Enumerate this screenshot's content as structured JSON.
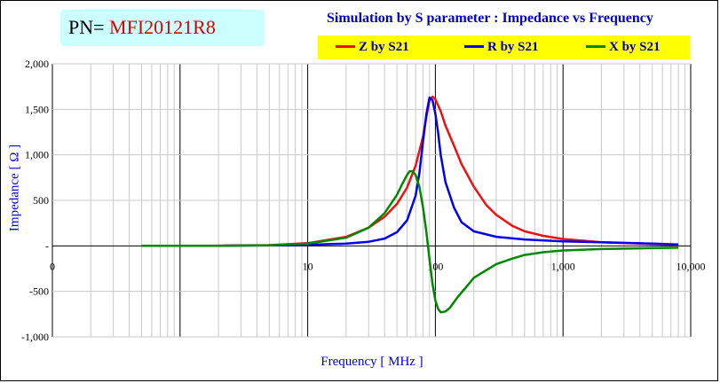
{
  "header": {
    "pn_label": "PN=",
    "pn_value": "MFI20121R8",
    "title": "Simulation by S parameter : Impedance vs Frequency"
  },
  "chart_data": {
    "type": "line",
    "title": "Simulation by S parameter : Impedance vs Frequency",
    "xlabel": "Frequency [ MHz ]",
    "ylabel": "Impedance [ Ω ]",
    "x_scale": "log",
    "xlim": [
      0.1,
      10000
    ],
    "ylim": [
      -1000,
      2000
    ],
    "x_ticks": [
      0.1,
      1,
      10,
      100,
      1000,
      10000
    ],
    "x_tick_labels": [
      "0",
      "",
      "10",
      "100",
      "1,000",
      "10,000"
    ],
    "y_ticks": [
      -1000,
      -500,
      0,
      500,
      1000,
      1500,
      2000
    ],
    "y_tick_labels": [
      "-1,000",
      "-500",
      "-",
      "500",
      "1,000",
      "1,500",
      "2,000"
    ],
    "grid": true,
    "legend_position": "top-right",
    "series": [
      {
        "name": "Z by S21",
        "color": "#ee1111",
        "points": [
          [
            0.5,
            0
          ],
          [
            1,
            1
          ],
          [
            2,
            2
          ],
          [
            5,
            8
          ],
          [
            10,
            30
          ],
          [
            20,
            100
          ],
          [
            30,
            200
          ],
          [
            40,
            320
          ],
          [
            50,
            460
          ],
          [
            60,
            640
          ],
          [
            70,
            880
          ],
          [
            80,
            1200
          ],
          [
            85,
            1420
          ],
          [
            90,
            1600
          ],
          [
            95,
            1640
          ],
          [
            100,
            1610
          ],
          [
            110,
            1480
          ],
          [
            120,
            1320
          ],
          [
            140,
            1100
          ],
          [
            160,
            900
          ],
          [
            200,
            650
          ],
          [
            250,
            450
          ],
          [
            300,
            340
          ],
          [
            400,
            220
          ],
          [
            500,
            160
          ],
          [
            700,
            110
          ],
          [
            1000,
            75
          ],
          [
            2000,
            40
          ],
          [
            5000,
            20
          ],
          [
            8000,
            12
          ]
        ]
      },
      {
        "name": "R by S21",
        "color": "#0000ee",
        "points": [
          [
            0.5,
            0
          ],
          [
            1,
            0
          ],
          [
            2,
            1
          ],
          [
            5,
            5
          ],
          [
            10,
            12
          ],
          [
            20,
            25
          ],
          [
            30,
            45
          ],
          [
            40,
            80
          ],
          [
            50,
            150
          ],
          [
            60,
            280
          ],
          [
            70,
            550
          ],
          [
            75,
            800
          ],
          [
            80,
            1150
          ],
          [
            85,
            1450
          ],
          [
            90,
            1630
          ],
          [
            95,
            1600
          ],
          [
            100,
            1450
          ],
          [
            105,
            1250
          ],
          [
            110,
            1000
          ],
          [
            120,
            700
          ],
          [
            140,
            420
          ],
          [
            160,
            260
          ],
          [
            200,
            160
          ],
          [
            300,
            100
          ],
          [
            500,
            70
          ],
          [
            1000,
            50
          ],
          [
            2000,
            40
          ],
          [
            5000,
            25
          ],
          [
            8000,
            15
          ]
        ]
      },
      {
        "name": "X by S21",
        "color": "#008800",
        "points": [
          [
            0.5,
            0
          ],
          [
            1,
            0
          ],
          [
            2,
            1
          ],
          [
            5,
            7
          ],
          [
            10,
            25
          ],
          [
            20,
            90
          ],
          [
            30,
            200
          ],
          [
            40,
            360
          ],
          [
            50,
            560
          ],
          [
            55,
            680
          ],
          [
            60,
            780
          ],
          [
            63,
            820
          ],
          [
            66,
            820
          ],
          [
            70,
            780
          ],
          [
            75,
            650
          ],
          [
            80,
            420
          ],
          [
            85,
            150
          ],
          [
            90,
            -150
          ],
          [
            95,
            -420
          ],
          [
            100,
            -600
          ],
          [
            105,
            -690
          ],
          [
            110,
            -730
          ],
          [
            120,
            -720
          ],
          [
            130,
            -680
          ],
          [
            150,
            -560
          ],
          [
            180,
            -430
          ],
          [
            200,
            -350
          ],
          [
            300,
            -200
          ],
          [
            400,
            -140
          ],
          [
            500,
            -100
          ],
          [
            700,
            -70
          ],
          [
            1000,
            -50
          ],
          [
            2000,
            -35
          ],
          [
            5000,
            -25
          ],
          [
            8000,
            -20
          ]
        ]
      }
    ]
  }
}
